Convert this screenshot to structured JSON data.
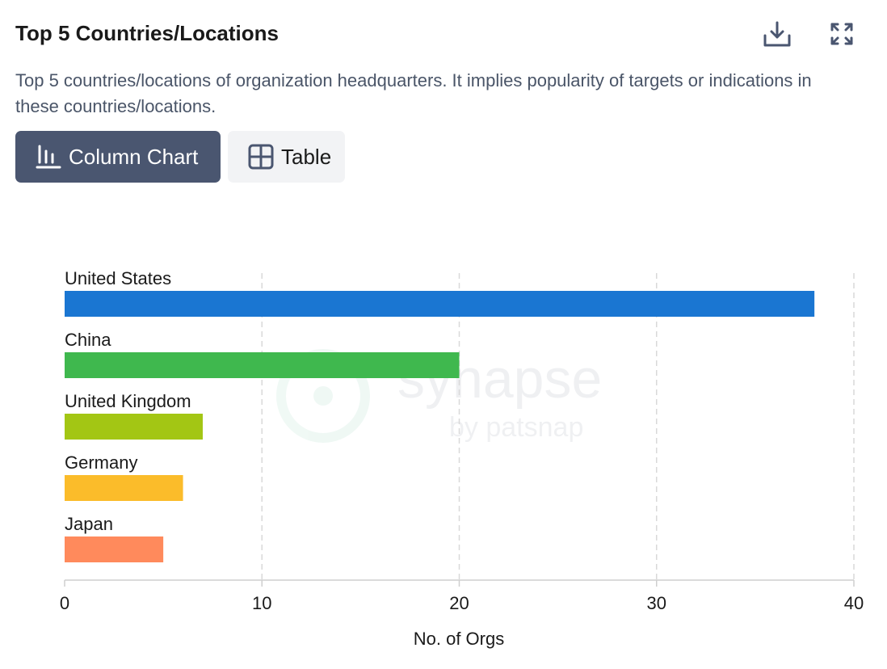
{
  "header": {
    "title": "Top 5 Countries/Locations",
    "description": "Top 5 countries/locations of organization headquarters. It implies popularity of targets or indications in these countries/locations.",
    "icons": {
      "download": "download-icon",
      "expand": "expand-icon"
    }
  },
  "view_toggle": {
    "options": [
      {
        "label": "Column Chart",
        "icon": "bar-chart-icon",
        "active": true
      },
      {
        "label": "Table",
        "icon": "table-grid-icon",
        "active": false
      }
    ]
  },
  "watermark": {
    "brand": "synapse",
    "sub": "by patsnap"
  },
  "colors": {
    "active_toggle_bg": "#4a5670",
    "inactive_toggle_bg": "#f2f3f5",
    "icon": "#4a5670"
  },
  "chart_data": {
    "type": "bar",
    "orientation": "horizontal",
    "categories": [
      "United States",
      "China",
      "United Kingdom",
      "Germany",
      "Japan"
    ],
    "values": [
      38,
      20,
      7,
      6,
      5
    ],
    "colors": [
      "#1a76d2",
      "#3fb84e",
      "#a3c614",
      "#fbbc2a",
      "#ff8a5c"
    ],
    "xlabel": "No. of Orgs",
    "xlim": [
      0,
      40
    ],
    "xticks": [
      0,
      10,
      20,
      30,
      40
    ],
    "grid": true,
    "legend": false
  }
}
